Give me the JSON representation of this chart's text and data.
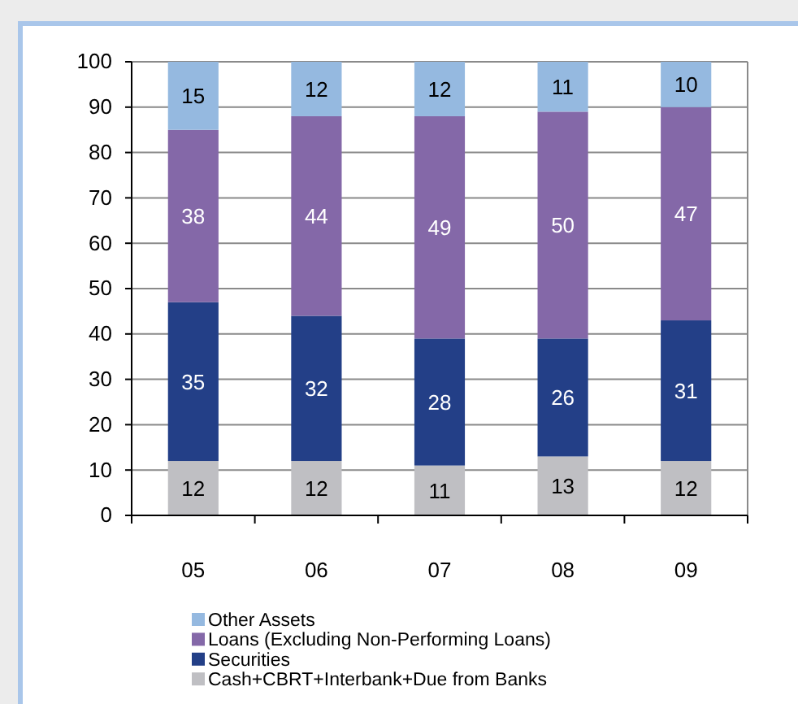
{
  "chart_data": {
    "type": "bar",
    "stacked": true,
    "categories": [
      "05",
      "06",
      "07",
      "08",
      "09"
    ],
    "series": [
      {
        "name": "Cash+CBRT+Interbank+Due from Banks",
        "color": "#bfbfc3",
        "values": [
          12,
          12,
          11,
          13,
          12
        ]
      },
      {
        "name": "Securities",
        "color": "#233f87",
        "values": [
          35,
          32,
          28,
          26,
          31
        ]
      },
      {
        "name": "Loans (Excluding Non-Performing Loans)",
        "color": "#8468a8",
        "values": [
          38,
          44,
          49,
          50,
          47
        ]
      },
      {
        "name": "Other Assets",
        "color": "#95b9e0",
        "values": [
          15,
          12,
          12,
          11,
          10
        ]
      }
    ],
    "ylim": [
      0,
      100
    ],
    "yticks": [
      0,
      10,
      20,
      30,
      40,
      50,
      60,
      70,
      80,
      90,
      100
    ],
    "grid": "y",
    "legend": "bottom",
    "data_labels": true
  }
}
